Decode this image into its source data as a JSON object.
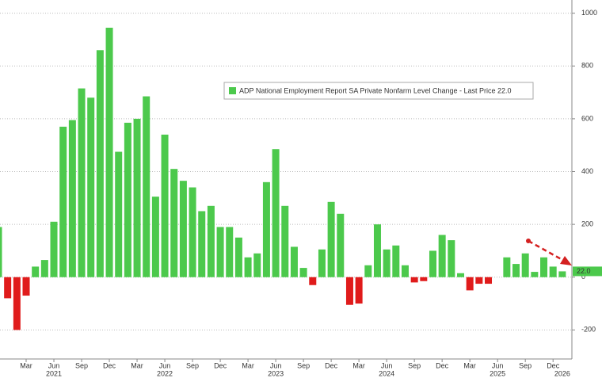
{
  "chart_data": {
    "type": "bar",
    "legend": "ADP National Employment Report SA Private Nonfarm Level Change - Last Price 22.0",
    "categories": [
      null,
      null,
      null,
      "Mar",
      null,
      null,
      "Jun",
      null,
      null,
      "Sep",
      null,
      null,
      "Dec",
      null,
      null,
      "Mar",
      null,
      null,
      "Jun",
      null,
      null,
      "Sep",
      null,
      null,
      "Dec",
      null,
      null,
      "Mar",
      null,
      null,
      "Jun",
      null,
      null,
      "Sep",
      null,
      null,
      "Dec",
      null,
      null,
      "Mar",
      null,
      null,
      "Jun",
      null,
      null,
      "Sep",
      null,
      null,
      "Dec",
      null,
      null,
      "Mar",
      null,
      null,
      "Jun",
      null,
      null,
      "Sep",
      null,
      null,
      "Dec",
      null
    ],
    "year_labels": [
      null,
      null,
      null,
      null,
      null,
      null,
      "2021",
      null,
      null,
      null,
      null,
      null,
      null,
      null,
      null,
      null,
      null,
      null,
      "2022",
      null,
      null,
      null,
      null,
      null,
      null,
      null,
      null,
      null,
      null,
      null,
      "2023",
      null,
      null,
      null,
      null,
      null,
      null,
      null,
      null,
      null,
      null,
      null,
      "2024",
      null,
      null,
      null,
      null,
      null,
      null,
      null,
      null,
      null,
      null,
      null,
      "2025",
      null,
      null,
      null,
      null,
      null,
      null,
      "2026"
    ],
    "values": [
      190,
      -80,
      -200,
      -70,
      40,
      65,
      210,
      570,
      595,
      715,
      680,
      860,
      945,
      475,
      585,
      600,
      685,
      305,
      540,
      410,
      365,
      340,
      250,
      270,
      190,
      190,
      150,
      75,
      90,
      360,
      485,
      270,
      115,
      35,
      -30,
      105,
      285,
      240,
      -105,
      -100,
      45,
      200,
      105,
      120,
      45,
      -20,
      -15,
      100,
      160,
      140,
      15,
      -50,
      -25,
      -25,
      0,
      75,
      50,
      90,
      20,
      75,
      40,
      22
    ],
    "positive_color": "#4cc94c",
    "negative_color": "#e01b1b",
    "last_price": {
      "value": 22,
      "label": "22.0"
    },
    "ylim": [
      -310,
      1050
    ],
    "yticks": [
      -200,
      0,
      200,
      400,
      600,
      800,
      1000
    ],
    "grid": true
  }
}
